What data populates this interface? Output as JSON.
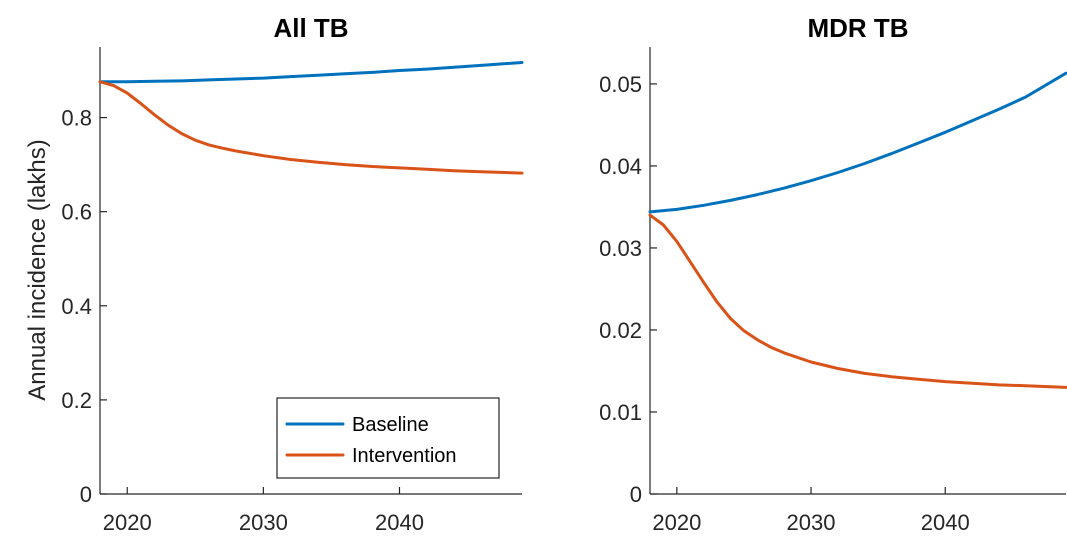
{
  "colors": {
    "baseline": "#0072BD",
    "intervention": "#D95319"
  },
  "ylabel": "Annual incidence (lakhs)",
  "legend": {
    "location": "bottom-right",
    "entries": [
      "Baseline",
      "Intervention"
    ]
  },
  "chart_data": [
    {
      "type": "line",
      "title": "All TB",
      "xlabel": "",
      "ylabel": "Annual incidence (lakhs)",
      "xlim": [
        2018,
        2049
      ],
      "ylim": [
        0,
        0.95
      ],
      "xticks": [
        2020,
        2030,
        2040
      ],
      "xtick_labels": [
        "2020",
        "2030",
        "2040"
      ],
      "yticks": [
        0,
        0.2,
        0.4,
        0.6,
        0.8
      ],
      "ytick_labels": [
        "0",
        "0.2",
        "0.4",
        "0.6",
        "0.8"
      ],
      "grid": false,
      "series": [
        {
          "name": "Baseline",
          "color": "#0072BD",
          "x": [
            2018,
            2020,
            2022,
            2024,
            2026,
            2028,
            2030,
            2032,
            2034,
            2036,
            2038,
            2040,
            2042,
            2044,
            2046,
            2049
          ],
          "y": [
            0.876,
            0.876,
            0.877,
            0.878,
            0.88,
            0.882,
            0.884,
            0.887,
            0.89,
            0.893,
            0.896,
            0.9,
            0.903,
            0.907,
            0.911,
            0.917
          ]
        },
        {
          "name": "Intervention",
          "color": "#D95319",
          "x": [
            2018,
            2019,
            2020,
            2021,
            2022,
            2023,
            2024,
            2025,
            2026,
            2027,
            2028,
            2030,
            2032,
            2034,
            2036,
            2038,
            2040,
            2042,
            2044,
            2046,
            2049
          ],
          "y": [
            0.876,
            0.868,
            0.852,
            0.83,
            0.806,
            0.784,
            0.766,
            0.752,
            0.742,
            0.735,
            0.729,
            0.719,
            0.711,
            0.705,
            0.7,
            0.696,
            0.693,
            0.69,
            0.687,
            0.685,
            0.682
          ]
        }
      ]
    },
    {
      "type": "line",
      "title": "MDR TB",
      "xlabel": "",
      "ylabel": "",
      "xlim": [
        2018,
        2049
      ],
      "ylim": [
        0,
        0.0545
      ],
      "xticks": [
        2020,
        2030,
        2040
      ],
      "xtick_labels": [
        "2020",
        "2030",
        "2040"
      ],
      "yticks": [
        0,
        0.01,
        0.02,
        0.03,
        0.04,
        0.05
      ],
      "ytick_labels": [
        "0",
        "0.01",
        "0.02",
        "0.03",
        "0.04",
        "0.05"
      ],
      "grid": false,
      "series": [
        {
          "name": "Baseline",
          "color": "#0072BD",
          "x": [
            2018,
            2020,
            2022,
            2024,
            2026,
            2028,
            2030,
            2032,
            2034,
            2036,
            2038,
            2040,
            2042,
            2044,
            2046,
            2049
          ],
          "y": [
            0.0344,
            0.0347,
            0.0352,
            0.0358,
            0.0365,
            0.0373,
            0.0382,
            0.0392,
            0.0403,
            0.0415,
            0.0428,
            0.0441,
            0.0455,
            0.0469,
            0.0484,
            0.0513
          ]
        },
        {
          "name": "Intervention",
          "color": "#D95319",
          "x": [
            2018,
            2019,
            2020,
            2021,
            2022,
            2023,
            2024,
            2025,
            2026,
            2027,
            2028,
            2030,
            2032,
            2034,
            2036,
            2038,
            2040,
            2042,
            2044,
            2046,
            2049
          ],
          "y": [
            0.034,
            0.0328,
            0.0308,
            0.0283,
            0.0258,
            0.0234,
            0.0214,
            0.0199,
            0.0188,
            0.0179,
            0.0172,
            0.0161,
            0.0153,
            0.0147,
            0.0143,
            0.014,
            0.0137,
            0.0135,
            0.0133,
            0.0132,
            0.013
          ]
        }
      ]
    }
  ]
}
